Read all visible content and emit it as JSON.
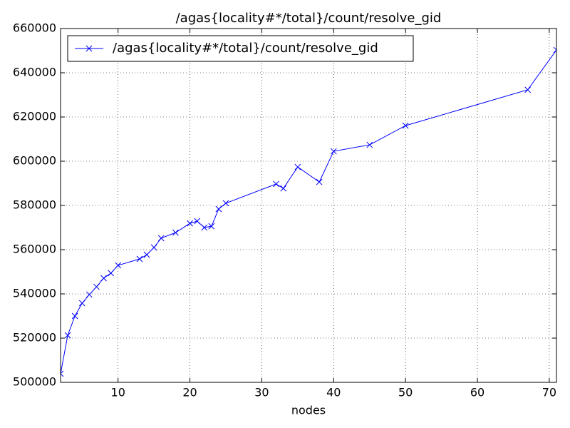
{
  "chart_data": {
    "type": "line",
    "title": "/agas{locality#*/total}/count/resolve_gid",
    "x_label": "nodes",
    "x": [
      2,
      3,
      4,
      5,
      6,
      7,
      8,
      9,
      10,
      13,
      14,
      15,
      16,
      18,
      20,
      21,
      22,
      23,
      24,
      25,
      32,
      33,
      35,
      38,
      40,
      45,
      50,
      67,
      71
    ],
    "series": [
      {
        "name": "/agas{locality#*/total}/count/resolve_gid",
        "color": "#0000ff",
        "marker": "x",
        "values": [
          503900,
          521300,
          530000,
          535800,
          539700,
          543200,
          547100,
          549400,
          552900,
          555800,
          557700,
          561000,
          565200,
          567700,
          571900,
          572900,
          570000,
          570600,
          578400,
          581000,
          589700,
          587700,
          597400,
          590600,
          604500,
          607400,
          616100,
          632300,
          650300
        ]
      }
    ],
    "xlim": [
      2,
      71
    ],
    "xticks": [
      10,
      20,
      30,
      40,
      50,
      60,
      70
    ],
    "ylim": [
      500000,
      660000
    ],
    "yticks": [
      500000,
      520000,
      540000,
      560000,
      580000,
      600000,
      620000,
      640000,
      660000
    ],
    "grid": true,
    "legend": "upper left"
  }
}
